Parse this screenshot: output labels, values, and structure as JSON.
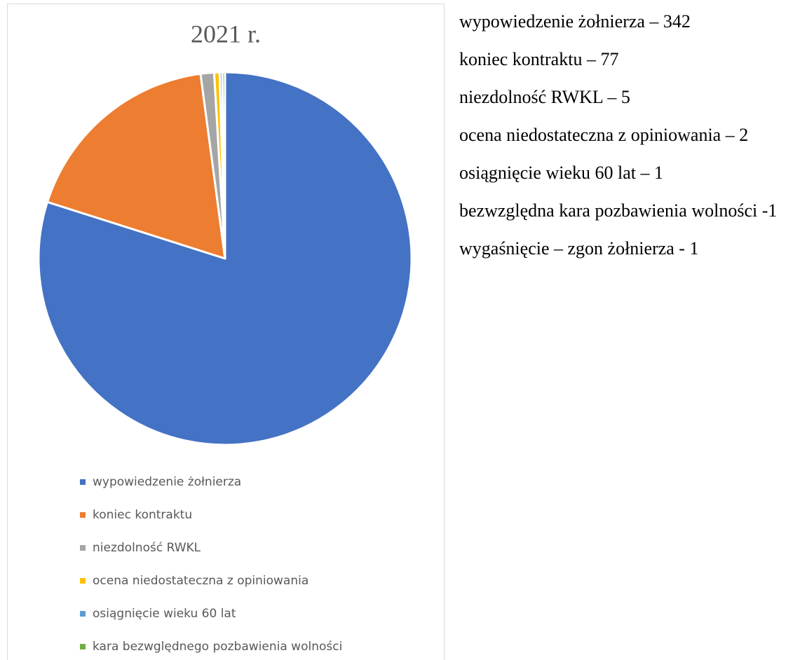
{
  "chart_data": {
    "type": "pie",
    "title": "2021 r.",
    "categories": [
      "wypowiedzenie żołnierza",
      "koniec kontraktu",
      "niezdolność RWKL",
      "ocena niedostateczna z opiniowania",
      "osiągnięcie wieku 60 lat",
      "kara bezwględnego pozbawienia wolności"
    ],
    "values": [
      342,
      77,
      5,
      2,
      1,
      1
    ],
    "colors": [
      "#4472c4",
      "#ed7d31",
      "#a5a5a5",
      "#ffc000",
      "#5b9bd5",
      "#70ad47"
    ],
    "legend": "bottom"
  },
  "notes": {
    "lines": [
      "wypowiedzenie żołnierza – 342",
      "koniec kontraktu – 77",
      "niezdolność RWKL – 5",
      "ocena niedostateczna z opiniowania – 2",
      "osiągnięcie wieku 60 lat – 1",
      "bezwzględna kara pozbawienia wolności -1",
      "wygaśnięcie – zgon żołnierza - 1"
    ]
  }
}
